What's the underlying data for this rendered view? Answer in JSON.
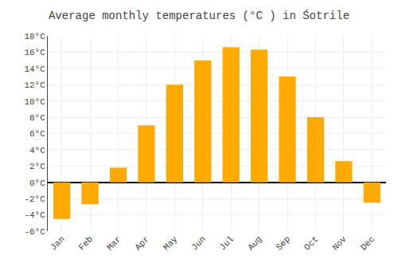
{
  "chart_data": {
    "type": "bar",
    "title": "Average monthly temperatures (°C ) in Śotrile",
    "categories": [
      "Jan",
      "Feb",
      "Mar",
      "Apr",
      "May",
      "Jun",
      "Jul",
      "Aug",
      "Sep",
      "Oct",
      "Nov",
      "Dec"
    ],
    "values": [
      -4.5,
      -2.7,
      1.8,
      7.0,
      12.0,
      15.0,
      16.6,
      16.3,
      13.0,
      8.0,
      2.6,
      -2.5
    ],
    "color": "#FFAA00",
    "ylim": [
      -6,
      18
    ],
    "yticks": [
      {
        "value": -6,
        "label": "-6°C"
      },
      {
        "value": -4,
        "label": "-4°C"
      },
      {
        "value": -2,
        "label": "-2°C"
      },
      {
        "value": 0,
        "label": "0°C"
      },
      {
        "value": 2,
        "label": "2°C"
      },
      {
        "value": 4,
        "label": "4°C"
      },
      {
        "value": 6,
        "label": "6°C"
      },
      {
        "value": 8,
        "label": "8°C"
      },
      {
        "value": 10,
        "label": "10°C"
      },
      {
        "value": 12,
        "label": "12°C"
      },
      {
        "value": 14,
        "label": "14°C"
      },
      {
        "value": 16,
        "label": "16°C"
      },
      {
        "value": 18,
        "label": "18°C"
      }
    ],
    "grid": true
  }
}
